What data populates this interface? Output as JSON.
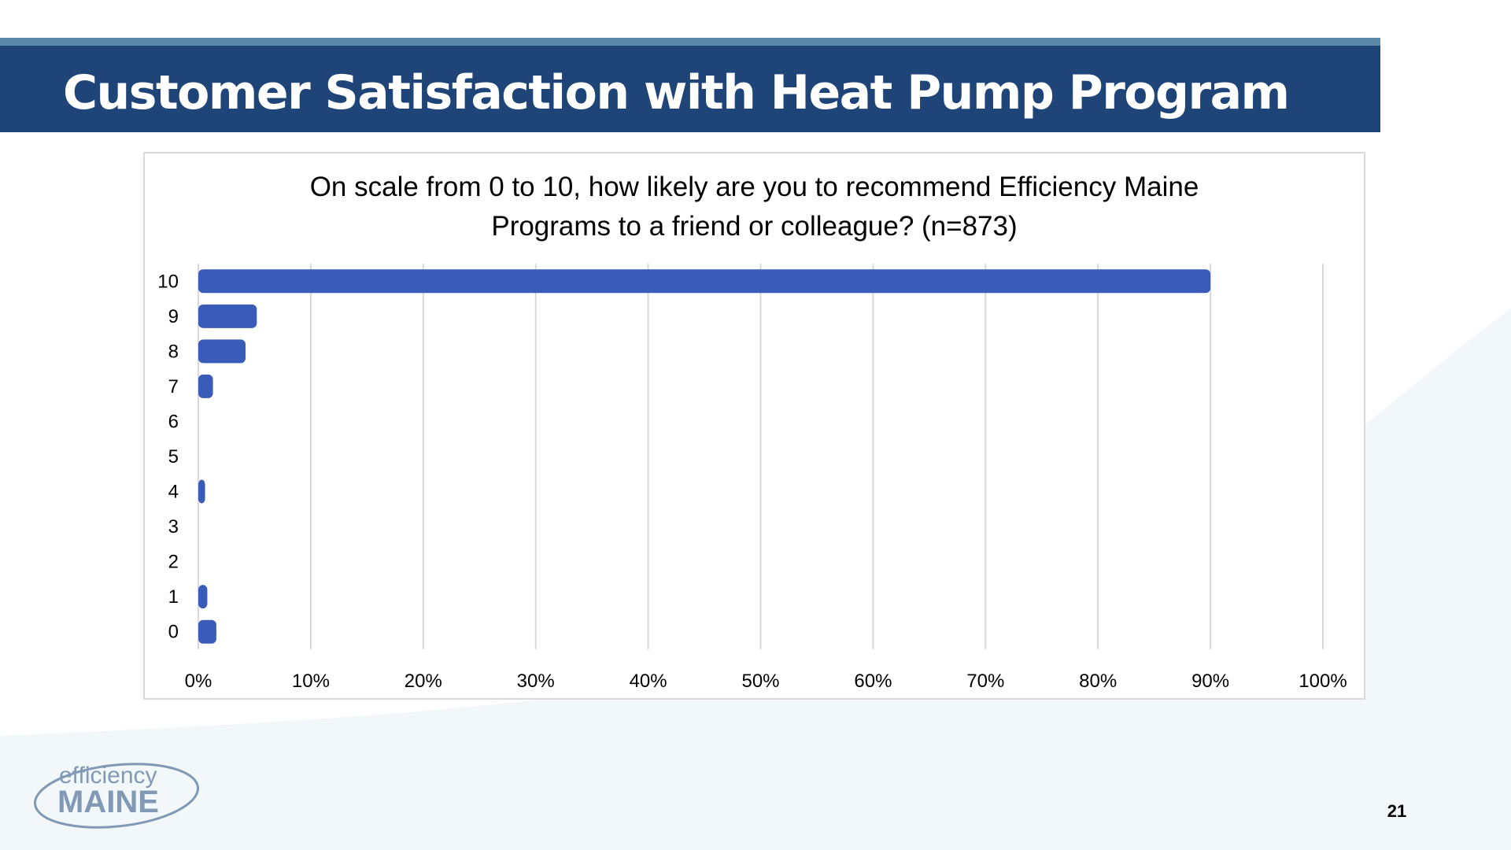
{
  "slide": {
    "title": "Customer Satisfaction with Heat Pump Program",
    "page_number": "21",
    "logo": {
      "top": "efficiency",
      "bottom": "MAINE"
    },
    "colors": {
      "title_band": "#1f4578",
      "title_band_accent": "#5b87a9",
      "bar": "#3a5bb8",
      "background_swoosh": "#f2f8fa"
    }
  },
  "chart_data": {
    "type": "bar",
    "orientation": "horizontal",
    "title_lines": [
      "On scale from 0 to 10, how likely are you to recommend Efficiency Maine",
      "Programs to a friend or colleague? (n=873)"
    ],
    "categories": [
      "10",
      "9",
      "8",
      "7",
      "6",
      "5",
      "4",
      "3",
      "2",
      "1",
      "0"
    ],
    "values": [
      90.0,
      5.2,
      4.2,
      1.3,
      0,
      0,
      0.6,
      0,
      0,
      0.8,
      1.6
    ],
    "xlim": [
      0,
      100
    ],
    "x_ticks": [
      "0%",
      "10%",
      "20%",
      "30%",
      "40%",
      "50%",
      "60%",
      "70%",
      "80%",
      "90%",
      "100%"
    ],
    "gridlines": "vertical",
    "legend": "none"
  }
}
